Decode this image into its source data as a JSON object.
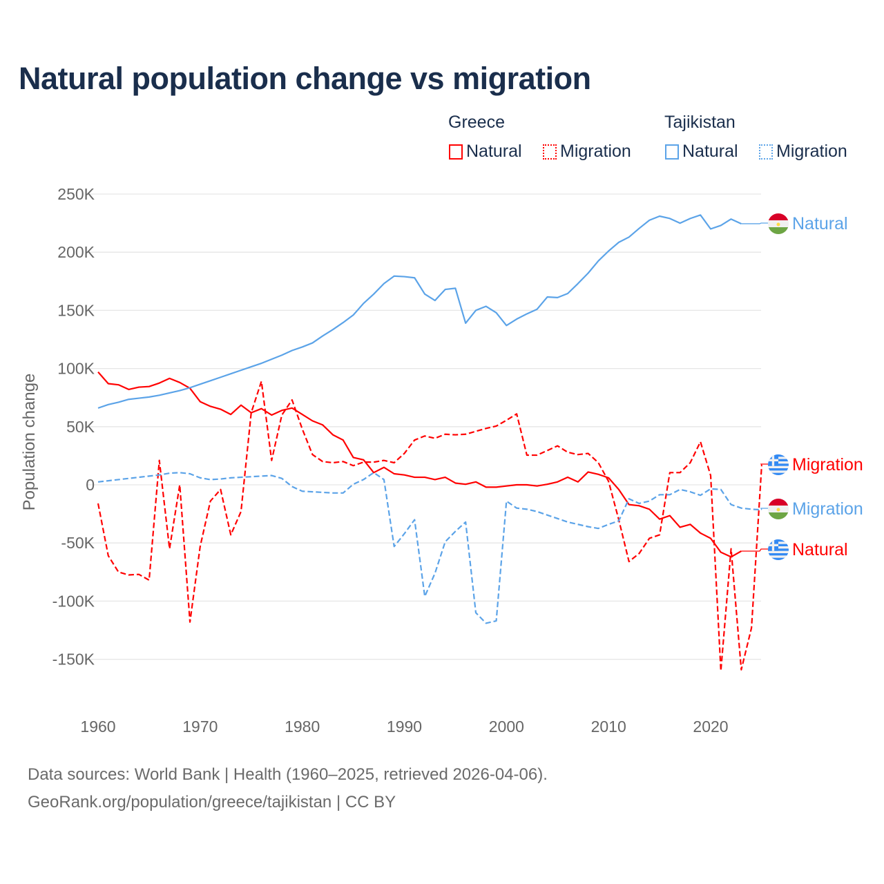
{
  "chart_data": {
    "type": "line",
    "title": "Natural population change vs migration",
    "xlabel": "",
    "ylabel": "Population change",
    "xlim": [
      1960,
      2025
    ],
    "ylim": [
      -150000,
      250000
    ],
    "x_ticks": [
      1960,
      1970,
      1980,
      1990,
      2000,
      2010,
      2020
    ],
    "x_tick_labels": [
      "1960",
      "1970",
      "1980",
      "1990",
      "2000",
      "2010",
      "2020"
    ],
    "y_ticks": [
      250000,
      200000,
      150000,
      100000,
      50000,
      0,
      -50000,
      -100000,
      -150000
    ],
    "y_tick_labels": [
      "250K",
      "200K",
      "150K",
      "100K",
      "50K",
      "0",
      "-50K",
      "-100K",
      "-150K"
    ],
    "grid": true,
    "legend": {
      "placement": "top-right",
      "groups": [
        {
          "name": "Greece",
          "items": [
            "Natural",
            "Migration"
          ]
        },
        {
          "name": "Tajikistan",
          "items": [
            "Natural",
            "Migration"
          ]
        }
      ]
    },
    "series": [
      {
        "name": "Greece Natural",
        "country": "Greece",
        "label": "Natural",
        "color": "#ff0000",
        "dash": false,
        "start_year": 1960,
        "values": [
          97,
          87,
          86,
          82,
          84,
          84.5,
          87.5,
          91.5,
          88,
          83,
          71.5,
          67.5,
          65,
          60.5,
          68.5,
          62,
          65.5,
          60,
          64,
          66,
          60.5,
          55,
          51.5,
          43,
          38.5,
          23.5,
          21.5,
          10.5,
          15,
          9.5,
          8.5,
          6.5,
          6.5,
          4.5,
          6.5,
          1.5,
          0.5,
          2.5,
          -2,
          -2,
          -1,
          0,
          0,
          -1,
          0.5,
          2.5,
          6.5,
          2.5,
          11,
          9,
          6,
          -4,
          -17,
          -18,
          -21,
          -29.5,
          -26.5,
          -36.5,
          -34,
          -41.5,
          -46,
          -58,
          -62,
          -57
        ]
      },
      {
        "name": "Greece Migration",
        "country": "Greece",
        "label": "Migration",
        "color": "#ff0000",
        "dash": true,
        "start_year": 1960,
        "values": [
          -16,
          -61,
          -75,
          -77.5,
          -77,
          -82,
          21,
          -55,
          0,
          -118,
          -53,
          -14,
          -4,
          -43,
          -23,
          62,
          89,
          21,
          60,
          73,
          48,
          26,
          20,
          19,
          20,
          16.5,
          19.5,
          19.5,
          21,
          19,
          27,
          38.5,
          42,
          40,
          43.5,
          43,
          43.5,
          46,
          48.5,
          50.5,
          55.5,
          61,
          25.5,
          25.5,
          29.5,
          33.5,
          28,
          26,
          27,
          19,
          3,
          -30,
          -66,
          -59,
          -46,
          -43,
          10.5,
          10.5,
          19,
          37,
          8,
          -160,
          -55,
          -159,
          -123,
          17
        ]
      },
      {
        "name": "Tajikistan Natural",
        "country": "Tajikistan",
        "label": "Natural",
        "color": "#5ba3e8",
        "dash": false,
        "start_year": 1960,
        "values": [
          66,
          69,
          71,
          73.5,
          74.5,
          75.5,
          77,
          79,
          81,
          83.5,
          86.5,
          89.5,
          92.5,
          95.5,
          98.5,
          101.5,
          104.5,
          108,
          111.5,
          115.5,
          118.5,
          122,
          128,
          133.5,
          139.5,
          146,
          156,
          164,
          173,
          179.5,
          179,
          178,
          164,
          158.5,
          168,
          169,
          139,
          150,
          153.5,
          148,
          137,
          142.5,
          147,
          151,
          161.5,
          161,
          164.5,
          173,
          182,
          192.5,
          201,
          208.5,
          213,
          220.5,
          227.5,
          231,
          229,
          225,
          229,
          232,
          220,
          223,
          228.5,
          224.5
        ]
      },
      {
        "name": "Tajikistan Migration",
        "country": "Tajikistan",
        "label": "Migration",
        "color": "#5ba3e8",
        "dash": true,
        "start_year": 1960,
        "values": [
          2.5,
          3.5,
          4.5,
          5.5,
          6.5,
          7.5,
          8.5,
          10,
          10.5,
          9.5,
          6,
          4.5,
          5,
          6,
          6.5,
          7,
          7.5,
          8,
          5.5,
          -1.5,
          -5.5,
          -6,
          -6.5,
          -7,
          -7,
          0.5,
          4.5,
          10.5,
          4.5,
          -53,
          -42,
          -30,
          -96,
          -76,
          -49,
          -40,
          -32,
          -110,
          -119,
          -117,
          -14,
          -20,
          -21,
          -23,
          -26,
          -29,
          -32,
          -34,
          -36,
          -37.5,
          -34,
          -31,
          -12,
          -16,
          -14,
          -8.5,
          -8.5,
          -4,
          -6,
          -9,
          -3.5,
          -4,
          -17,
          -20,
          -21,
          -21.5
        ]
      }
    ],
    "value_unit": "thousands"
  },
  "legend_labels": {
    "greece": "Greece",
    "tajikistan": "Tajikistan",
    "natural": "Natural",
    "migration": "Migration"
  },
  "end_labels": {
    "tj_natural": "Natural",
    "gr_migration": "Migration",
    "tj_migration": "Migration",
    "gr_natural": "Natural"
  },
  "footer": {
    "line1": "Data sources: World Bank | Health (1960–2025, retrieved 2026-04-06).",
    "line2": "GeoRank.org/population/greece/tajikistan | CC BY"
  }
}
